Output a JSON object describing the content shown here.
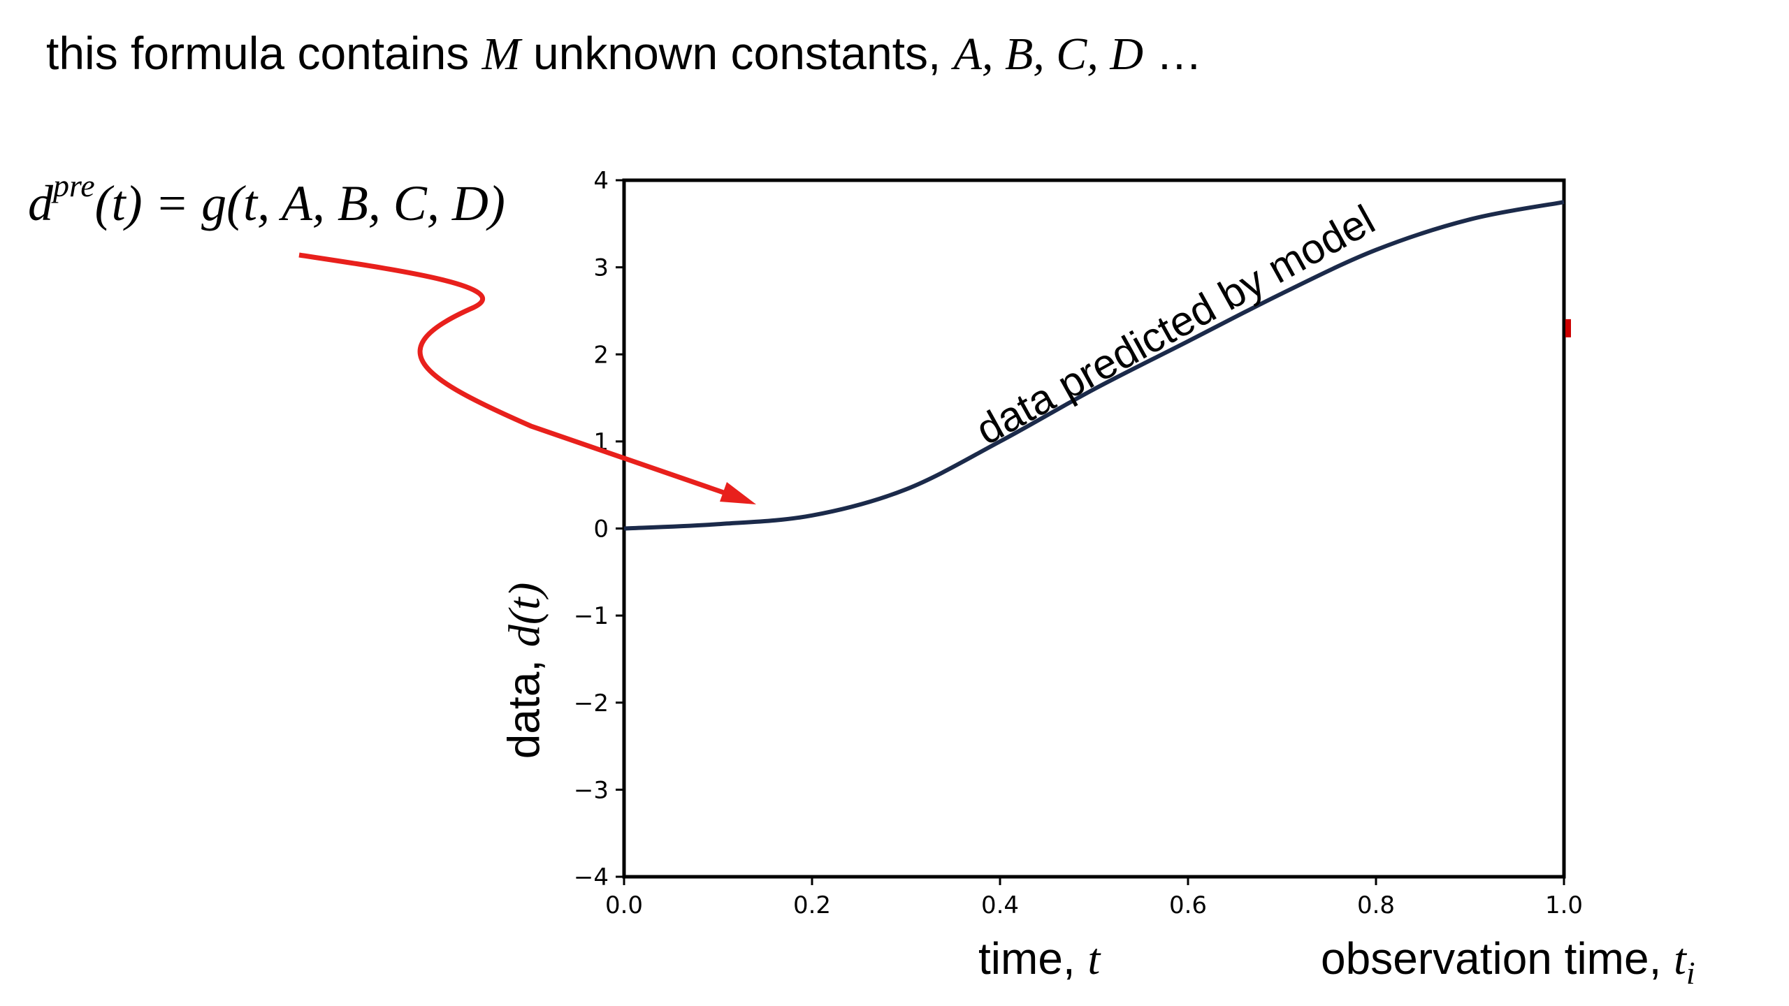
{
  "header": {
    "prefix": "this formula contains",
    "count_symbol": "M",
    "middle": "unknown constants,",
    "constants": "A, B, C, D",
    "suffix": "…"
  },
  "formula": {
    "lhs_base": "d",
    "lhs_sup": "pre",
    "rhs": "(t) = g(t, A, B, C, D)"
  },
  "axes": {
    "xlabel_text": "time,",
    "xlabel_var": "t",
    "xlabel2_text": "observation time,",
    "xlabel2_var": "t",
    "xlabel2_sub": "i",
    "ylabel_text": "data,",
    "ylabel_var": "d(t)"
  },
  "annotation": "data  predicted  by model",
  "colors": {
    "curve": "#1b2a4a",
    "arrow": "#e8201c",
    "marker": "#cc0000"
  },
  "chart_data": {
    "type": "line",
    "title": "",
    "xlabel": "time, t",
    "ylabel": "data, d(t)",
    "xlim": [
      0.0,
      1.0
    ],
    "ylim": [
      -4,
      4
    ],
    "xticks": [
      "0.0",
      "0.2",
      "0.4",
      "0.6",
      "0.8",
      "1.0"
    ],
    "yticks": [
      "−4",
      "−3",
      "−2",
      "−1",
      "0",
      "1",
      "2",
      "3",
      "4"
    ],
    "grid": false,
    "series": [
      {
        "x": [
          0.0,
          0.1,
          0.2,
          0.3,
          0.4,
          0.5,
          0.6,
          0.7,
          0.8,
          0.9,
          1.0
        ],
        "y": [
          0.0,
          0.05,
          0.15,
          0.45,
          1.0,
          1.6,
          2.15,
          2.7,
          3.2,
          3.55,
          3.75
        ]
      }
    ],
    "marker_point": {
      "x": 1.0,
      "y": 2.3
    }
  }
}
